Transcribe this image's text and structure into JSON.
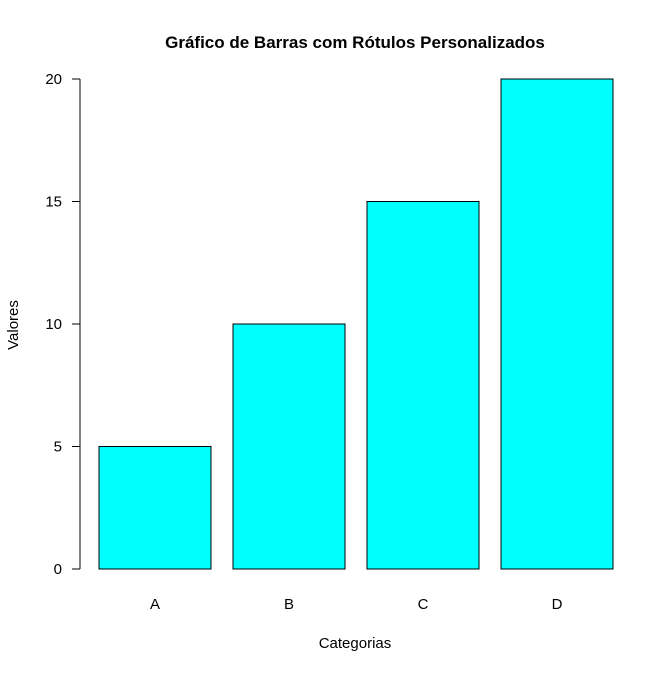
{
  "chart_data": {
    "type": "bar",
    "title": "Gráfico de Barras com Rótulos Personalizados",
    "xlabel": "Categorias",
    "ylabel": "Valores",
    "categories": [
      "A",
      "B",
      "C",
      "D"
    ],
    "values": [
      5,
      10,
      15,
      20
    ],
    "ylim": [
      0,
      20
    ],
    "yticks": [
      0,
      5,
      10,
      15,
      20
    ],
    "grid": false,
    "legend": "none",
    "colors": {
      "bar_fill": "#00FFFF",
      "bar_stroke": "#000000",
      "axis": "#000000",
      "background": "#FFFFFF"
    }
  }
}
